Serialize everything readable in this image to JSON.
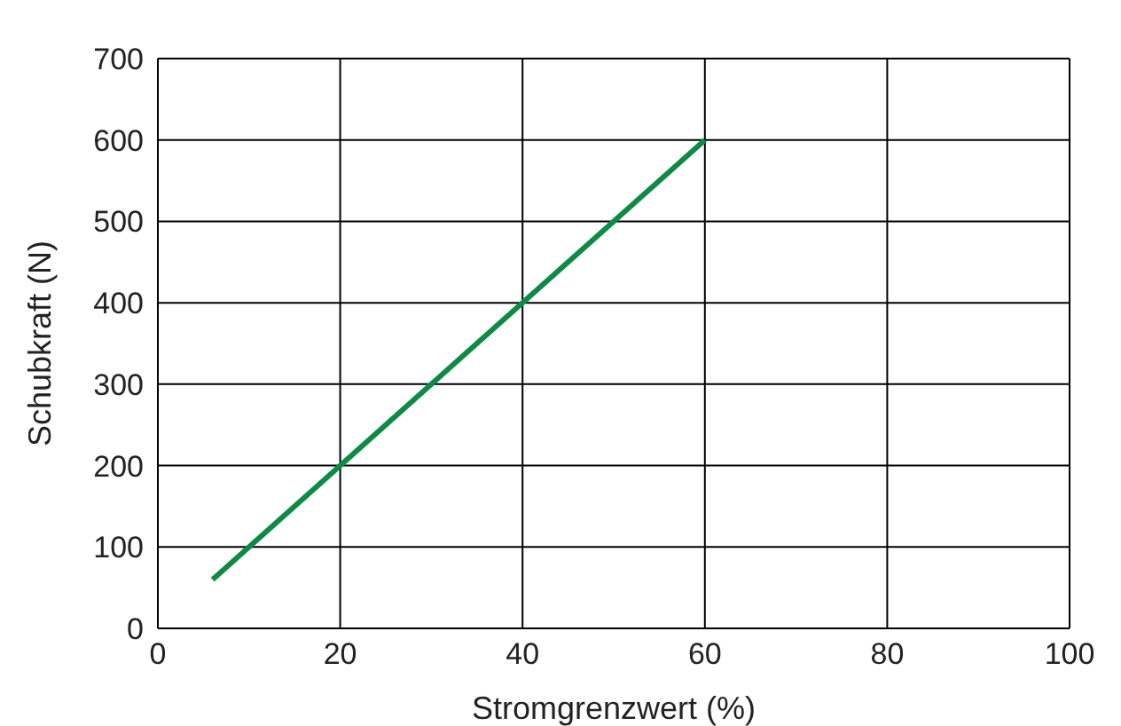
{
  "chart_data": {
    "type": "line",
    "xlabel": "Stromgrenzwert (%)",
    "ylabel": "Schubkraft (N)",
    "x": [
      6,
      60
    ],
    "series": [
      {
        "color": "#0f8a45",
        "values": [
          60,
          600
        ]
      }
    ],
    "xlim": [
      0,
      100
    ],
    "xticks": [
      0,
      20,
      40,
      60,
      80,
      100
    ],
    "ylim": [
      0,
      700
    ],
    "yticks": [
      0,
      100,
      200,
      300,
      400,
      500,
      600,
      700
    ],
    "grid": true,
    "legend": false,
    "marker": "none",
    "line_style": "solid"
  }
}
